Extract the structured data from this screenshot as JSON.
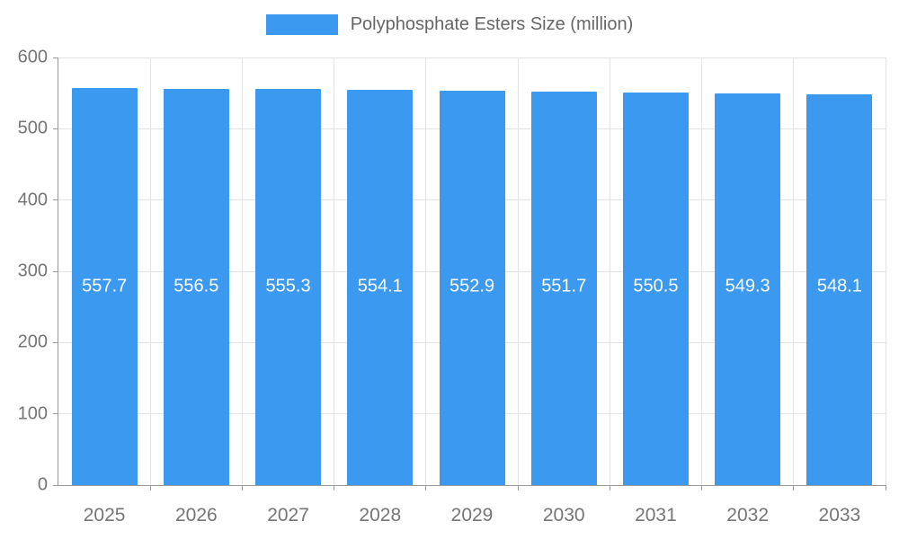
{
  "legend": {
    "label": "Polyphosphate Esters Size (million)",
    "swatch_color": "#3b99f0"
  },
  "chart_data": {
    "type": "bar",
    "title": "",
    "xlabel": "",
    "ylabel": "",
    "categories": [
      "2025",
      "2026",
      "2027",
      "2028",
      "2029",
      "2030",
      "2031",
      "2032",
      "2033"
    ],
    "series": [
      {
        "name": "Polyphosphate Esters Size (million)",
        "values": [
          557.7,
          556.5,
          555.3,
          554.1,
          552.9,
          551.7,
          550.5,
          549.3,
          548.1
        ]
      }
    ],
    "ylim": [
      0,
      600
    ],
    "yticks": [
      0,
      100,
      200,
      300,
      400,
      500,
      600
    ],
    "grid": true,
    "legend_position": "top",
    "bar_color": "#3b99f0",
    "value_label_color": "#ffffff",
    "axis_color": "#9a9a9a",
    "grid_color": "#e3e3e3",
    "tick_label_color": "#757575",
    "value_label_y": 278
  }
}
